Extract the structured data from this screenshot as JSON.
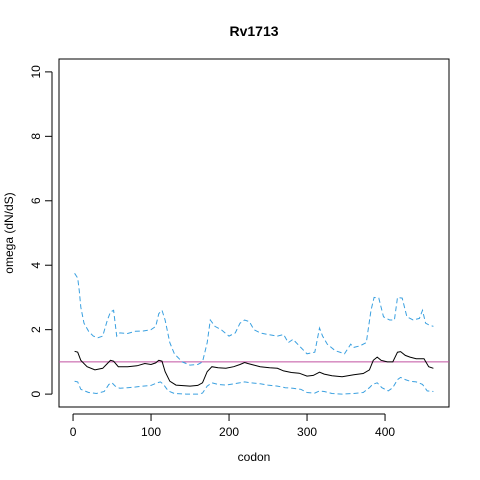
{
  "chart_data": {
    "type": "line",
    "title": "Rv1713",
    "xlabel": "codon",
    "ylabel": "omega (dN/dS)",
    "xlim": [
      -18,
      482
    ],
    "ylim": [
      -0.4,
      10.4
    ],
    "xticks": [
      0,
      100,
      200,
      300,
      400
    ],
    "yticks": [
      0,
      2,
      4,
      6,
      8,
      10
    ],
    "reference_line": {
      "y": 1,
      "color": "#c050a0"
    },
    "colors": {
      "estimate": "#000000",
      "bounds": "#3aa0e0"
    },
    "series": [
      {
        "role": "estimate",
        "points": [
          [
            2,
            1.33
          ],
          [
            6,
            1.3
          ],
          [
            10,
            1.05
          ],
          [
            18,
            0.85
          ],
          [
            28,
            0.75
          ],
          [
            38,
            0.8
          ],
          [
            44,
            0.95
          ],
          [
            48,
            1.05
          ],
          [
            52,
            1.02
          ],
          [
            58,
            0.85
          ],
          [
            70,
            0.85
          ],
          [
            82,
            0.88
          ],
          [
            92,
            0.95
          ],
          [
            100,
            0.92
          ],
          [
            106,
            0.97
          ],
          [
            110,
            1.05
          ],
          [
            114,
            1.02
          ],
          [
            118,
            0.7
          ],
          [
            124,
            0.4
          ],
          [
            132,
            0.28
          ],
          [
            150,
            0.25
          ],
          [
            160,
            0.27
          ],
          [
            166,
            0.35
          ],
          [
            172,
            0.7
          ],
          [
            178,
            0.85
          ],
          [
            186,
            0.82
          ],
          [
            196,
            0.8
          ],
          [
            206,
            0.85
          ],
          [
            214,
            0.92
          ],
          [
            220,
            0.98
          ],
          [
            224,
            0.95
          ],
          [
            232,
            0.9
          ],
          [
            240,
            0.85
          ],
          [
            252,
            0.82
          ],
          [
            262,
            0.8
          ],
          [
            270,
            0.72
          ],
          [
            280,
            0.67
          ],
          [
            290,
            0.65
          ],
          [
            300,
            0.56
          ],
          [
            308,
            0.58
          ],
          [
            316,
            0.68
          ],
          [
            322,
            0.62
          ],
          [
            332,
            0.57
          ],
          [
            345,
            0.54
          ],
          [
            360,
            0.6
          ],
          [
            372,
            0.64
          ],
          [
            380,
            0.75
          ],
          [
            385,
            1.05
          ],
          [
            390,
            1.15
          ],
          [
            395,
            1.05
          ],
          [
            403,
            1.0
          ],
          [
            410,
            1.0
          ],
          [
            416,
            1.3
          ],
          [
            420,
            1.32
          ],
          [
            426,
            1.2
          ],
          [
            432,
            1.15
          ],
          [
            440,
            1.1
          ],
          [
            450,
            1.1
          ],
          [
            456,
            0.85
          ],
          [
            462,
            0.8
          ]
        ]
      },
      {
        "role": "upper",
        "points": [
          [
            2,
            3.75
          ],
          [
            6,
            3.6
          ],
          [
            8,
            3.2
          ],
          [
            10,
            2.7
          ],
          [
            14,
            2.2
          ],
          [
            20,
            1.95
          ],
          [
            26,
            1.8
          ],
          [
            32,
            1.75
          ],
          [
            38,
            1.8
          ],
          [
            44,
            2.3
          ],
          [
            48,
            2.55
          ],
          [
            52,
            2.6
          ],
          [
            56,
            1.8
          ],
          [
            60,
            1.9
          ],
          [
            70,
            1.88
          ],
          [
            80,
            1.95
          ],
          [
            90,
            1.96
          ],
          [
            100,
            2.0
          ],
          [
            106,
            2.1
          ],
          [
            110,
            2.5
          ],
          [
            114,
            2.6
          ],
          [
            118,
            2.3
          ],
          [
            124,
            1.6
          ],
          [
            130,
            1.25
          ],
          [
            140,
            1.0
          ],
          [
            150,
            0.9
          ],
          [
            160,
            0.92
          ],
          [
            166,
            1.0
          ],
          [
            172,
            1.6
          ],
          [
            176,
            2.3
          ],
          [
            182,
            2.1
          ],
          [
            190,
            2.0
          ],
          [
            200,
            1.8
          ],
          [
            208,
            1.9
          ],
          [
            214,
            2.2
          ],
          [
            220,
            2.3
          ],
          [
            226,
            2.25
          ],
          [
            232,
            2.0
          ],
          [
            240,
            1.9
          ],
          [
            250,
            1.85
          ],
          [
            262,
            1.8
          ],
          [
            270,
            1.85
          ],
          [
            276,
            1.6
          ],
          [
            282,
            1.7
          ],
          [
            290,
            1.5
          ],
          [
            300,
            1.25
          ],
          [
            310,
            1.3
          ],
          [
            316,
            2.05
          ],
          [
            320,
            1.8
          ],
          [
            326,
            1.55
          ],
          [
            336,
            1.35
          ],
          [
            348,
            1.25
          ],
          [
            356,
            1.55
          ],
          [
            360,
            1.45
          ],
          [
            368,
            1.5
          ],
          [
            376,
            1.6
          ],
          [
            382,
            2.6
          ],
          [
            386,
            3.0
          ],
          [
            392,
            2.98
          ],
          [
            398,
            2.4
          ],
          [
            406,
            2.3
          ],
          [
            412,
            2.3
          ],
          [
            416,
            3.0
          ],
          [
            422,
            2.98
          ],
          [
            428,
            2.4
          ],
          [
            436,
            2.3
          ],
          [
            444,
            2.35
          ],
          [
            448,
            2.6
          ],
          [
            452,
            2.2
          ],
          [
            456,
            2.15
          ],
          [
            462,
            2.1
          ]
        ]
      },
      {
        "role": "lower",
        "points": [
          [
            2,
            0.4
          ],
          [
            6,
            0.38
          ],
          [
            10,
            0.15
          ],
          [
            20,
            0.05
          ],
          [
            30,
            0.02
          ],
          [
            40,
            0.08
          ],
          [
            46,
            0.3
          ],
          [
            50,
            0.35
          ],
          [
            54,
            0.25
          ],
          [
            60,
            0.18
          ],
          [
            70,
            0.2
          ],
          [
            80,
            0.22
          ],
          [
            90,
            0.25
          ],
          [
            100,
            0.27
          ],
          [
            108,
            0.35
          ],
          [
            112,
            0.38
          ],
          [
            116,
            0.3
          ],
          [
            122,
            0.1
          ],
          [
            130,
            0.02
          ],
          [
            145,
            0.0
          ],
          [
            160,
            0.0
          ],
          [
            166,
            0.03
          ],
          [
            172,
            0.25
          ],
          [
            178,
            0.35
          ],
          [
            186,
            0.3
          ],
          [
            196,
            0.28
          ],
          [
            206,
            0.32
          ],
          [
            214,
            0.35
          ],
          [
            220,
            0.38
          ],
          [
            228,
            0.35
          ],
          [
            240,
            0.32
          ],
          [
            250,
            0.28
          ],
          [
            262,
            0.25
          ],
          [
            272,
            0.2
          ],
          [
            282,
            0.18
          ],
          [
            292,
            0.15
          ],
          [
            300,
            0.05
          ],
          [
            310,
            0.03
          ],
          [
            316,
            0.1
          ],
          [
            322,
            0.08
          ],
          [
            332,
            0.02
          ],
          [
            345,
            0.0
          ],
          [
            360,
            0.02
          ],
          [
            372,
            0.05
          ],
          [
            380,
            0.2
          ],
          [
            384,
            0.3
          ],
          [
            390,
            0.35
          ],
          [
            396,
            0.2
          ],
          [
            404,
            0.1
          ],
          [
            410,
            0.2
          ],
          [
            416,
            0.45
          ],
          [
            420,
            0.52
          ],
          [
            426,
            0.45
          ],
          [
            432,
            0.4
          ],
          [
            440,
            0.38
          ],
          [
            448,
            0.3
          ],
          [
            454,
            0.1
          ],
          [
            462,
            0.08
          ]
        ]
      }
    ]
  }
}
